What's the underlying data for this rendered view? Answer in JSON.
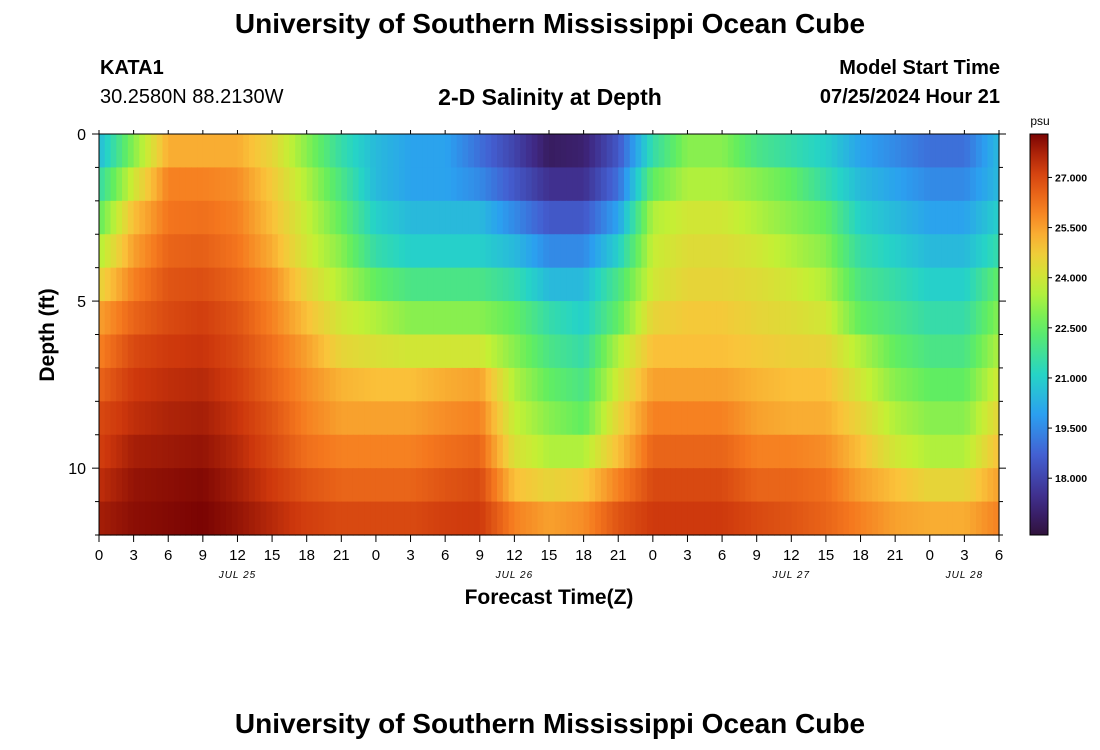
{
  "header": {
    "title": "University of Southern Mississippi Ocean Cube",
    "station_id": "KATA1",
    "coordinates": "30.2580N  88.2130W",
    "subtitle": "2-D Salinity at Depth",
    "model_start_label": "Model Start Time",
    "model_start_value": "07/25/2024 Hour 21"
  },
  "footer": {
    "title": "University of Southern Mississippi Ocean Cube"
  },
  "chart_data": {
    "type": "heatmap",
    "title": "2-D Salinity at Depth",
    "xlabel": "Forecast Time(Z)",
    "ylabel": "Depth (ft)",
    "colorbar_unit": "psu",
    "colorbar_ticks": [
      "18.000",
      "19.500",
      "21.000",
      "22.500",
      "24.000",
      "25.500",
      "27.000"
    ],
    "colorbar_range": [
      16.3,
      28.3
    ],
    "x_tick_labels": [
      "0",
      "3",
      "6",
      "9",
      "12",
      "15",
      "18",
      "21",
      "0",
      "3",
      "6",
      "9",
      "12",
      "15",
      "18",
      "21",
      "0",
      "3",
      "6",
      "9",
      "12",
      "15",
      "18",
      "21",
      "0",
      "3",
      "6"
    ],
    "x_range_hours": [
      0,
      78
    ],
    "date_labels": [
      {
        "text": "JUL 25",
        "hour": 12
      },
      {
        "text": "JUL 26",
        "hour": 36
      },
      {
        "text": "JUL 27",
        "hour": 60
      },
      {
        "text": "JUL 28",
        "hour": 75
      }
    ],
    "y_tick_labels": [
      "0",
      "5",
      "10"
    ],
    "y_range_ft": [
      0,
      12
    ],
    "depth_levels_ft": [
      0.5,
      1.5,
      2.5,
      3.5,
      4.5,
      5.5,
      6.5,
      7.5,
      8.5,
      9.5,
      10.5,
      11.5
    ],
    "profile_hours": [
      0,
      3,
      6,
      9,
      12,
      15,
      18,
      21,
      24,
      27,
      30,
      33,
      36,
      39,
      42,
      45,
      48,
      51,
      54,
      57,
      60,
      63,
      66,
      69,
      72,
      75,
      78
    ],
    "salinity_psu": [
      [
        20.5,
        23.0,
        25.3,
        25.3,
        25.3,
        24.5,
        23.0,
        21.5,
        20.5,
        20.0,
        20.0,
        19.0,
        18.0,
        16.8,
        17.0,
        18.5,
        21.5,
        23.0,
        23.0,
        22.0,
        21.5,
        21.0,
        20.0,
        19.5,
        19.0,
        19.0,
        20.5
      ],
      [
        21.5,
        24.0,
        26.0,
        26.0,
        25.8,
        24.8,
        23.5,
        22.0,
        20.5,
        20.0,
        20.0,
        19.5,
        18.5,
        17.5,
        17.5,
        19.0,
        22.5,
        23.5,
        23.5,
        23.0,
        22.5,
        21.5,
        20.5,
        20.0,
        19.5,
        19.5,
        20.5
      ],
      [
        22.5,
        25.0,
        26.2,
        26.3,
        26.0,
        25.0,
        23.8,
        22.5,
        21.0,
        20.5,
        20.5,
        20.5,
        19.5,
        18.5,
        18.5,
        20.0,
        23.5,
        24.0,
        24.0,
        23.5,
        23.0,
        22.5,
        21.0,
        20.5,
        20.0,
        20.0,
        21.0
      ],
      [
        23.5,
        25.5,
        26.5,
        26.6,
        26.2,
        25.3,
        24.0,
        23.0,
        21.5,
        21.0,
        21.0,
        21.0,
        20.5,
        19.5,
        19.5,
        21.0,
        23.8,
        24.3,
        24.3,
        24.0,
        23.5,
        23.0,
        21.5,
        21.0,
        20.5,
        20.5,
        21.5
      ],
      [
        24.5,
        26.0,
        26.8,
        26.9,
        26.5,
        25.8,
        24.5,
        23.5,
        22.5,
        22.0,
        22.0,
        22.0,
        21.5,
        20.5,
        20.5,
        22.0,
        24.0,
        24.5,
        24.5,
        24.3,
        24.0,
        23.5,
        22.0,
        21.5,
        21.0,
        21.0,
        22.5
      ],
      [
        25.5,
        26.5,
        27.0,
        27.2,
        26.8,
        26.0,
        25.0,
        24.0,
        23.5,
        23.0,
        23.0,
        23.0,
        22.5,
        21.5,
        21.0,
        22.5,
        24.5,
        24.8,
        24.8,
        24.5,
        24.3,
        24.0,
        22.5,
        22.0,
        21.5,
        21.5,
        23.0
      ],
      [
        26.0,
        27.0,
        27.3,
        27.4,
        27.0,
        26.3,
        25.5,
        24.5,
        24.2,
        24.0,
        24.0,
        24.0,
        23.0,
        22.0,
        21.5,
        23.5,
        25.0,
        25.0,
        25.0,
        24.8,
        24.6,
        24.5,
        23.5,
        22.5,
        22.0,
        22.0,
        23.5
      ],
      [
        26.5,
        27.3,
        27.5,
        27.6,
        27.2,
        26.5,
        25.8,
        25.2,
        25.0,
        25.0,
        25.3,
        25.5,
        23.5,
        22.5,
        22.0,
        24.0,
        25.5,
        25.5,
        25.5,
        25.2,
        25.0,
        25.0,
        24.0,
        23.0,
        22.5,
        22.5,
        24.0
      ],
      [
        27.0,
        27.5,
        27.7,
        27.8,
        27.4,
        26.8,
        26.0,
        25.5,
        25.5,
        25.5,
        25.8,
        26.0,
        23.8,
        23.0,
        22.5,
        24.5,
        26.0,
        26.0,
        26.0,
        25.5,
        25.3,
        25.3,
        24.5,
        23.5,
        23.0,
        23.0,
        24.5
      ],
      [
        27.2,
        27.8,
        27.9,
        28.0,
        27.6,
        27.0,
        26.3,
        26.0,
        26.0,
        26.0,
        26.3,
        26.5,
        24.2,
        23.5,
        23.5,
        25.0,
        26.5,
        26.5,
        26.5,
        26.0,
        26.0,
        25.8,
        25.0,
        24.0,
        23.5,
        23.5,
        25.0
      ],
      [
        27.5,
        28.0,
        28.1,
        28.2,
        27.8,
        27.3,
        26.8,
        26.5,
        26.5,
        26.5,
        26.8,
        27.0,
        25.0,
        24.5,
        24.8,
        26.0,
        27.0,
        27.0,
        27.0,
        26.5,
        26.5,
        26.3,
        25.5,
        25.0,
        24.5,
        24.5,
        25.5
      ],
      [
        27.8,
        28.1,
        28.2,
        28.3,
        28.0,
        27.6,
        27.2,
        27.0,
        27.0,
        27.0,
        27.2,
        27.3,
        26.0,
        25.5,
        25.8,
        26.8,
        27.3,
        27.3,
        27.3,
        27.0,
        26.8,
        26.5,
        26.0,
        25.5,
        25.3,
        25.3,
        26.0
      ]
    ]
  }
}
